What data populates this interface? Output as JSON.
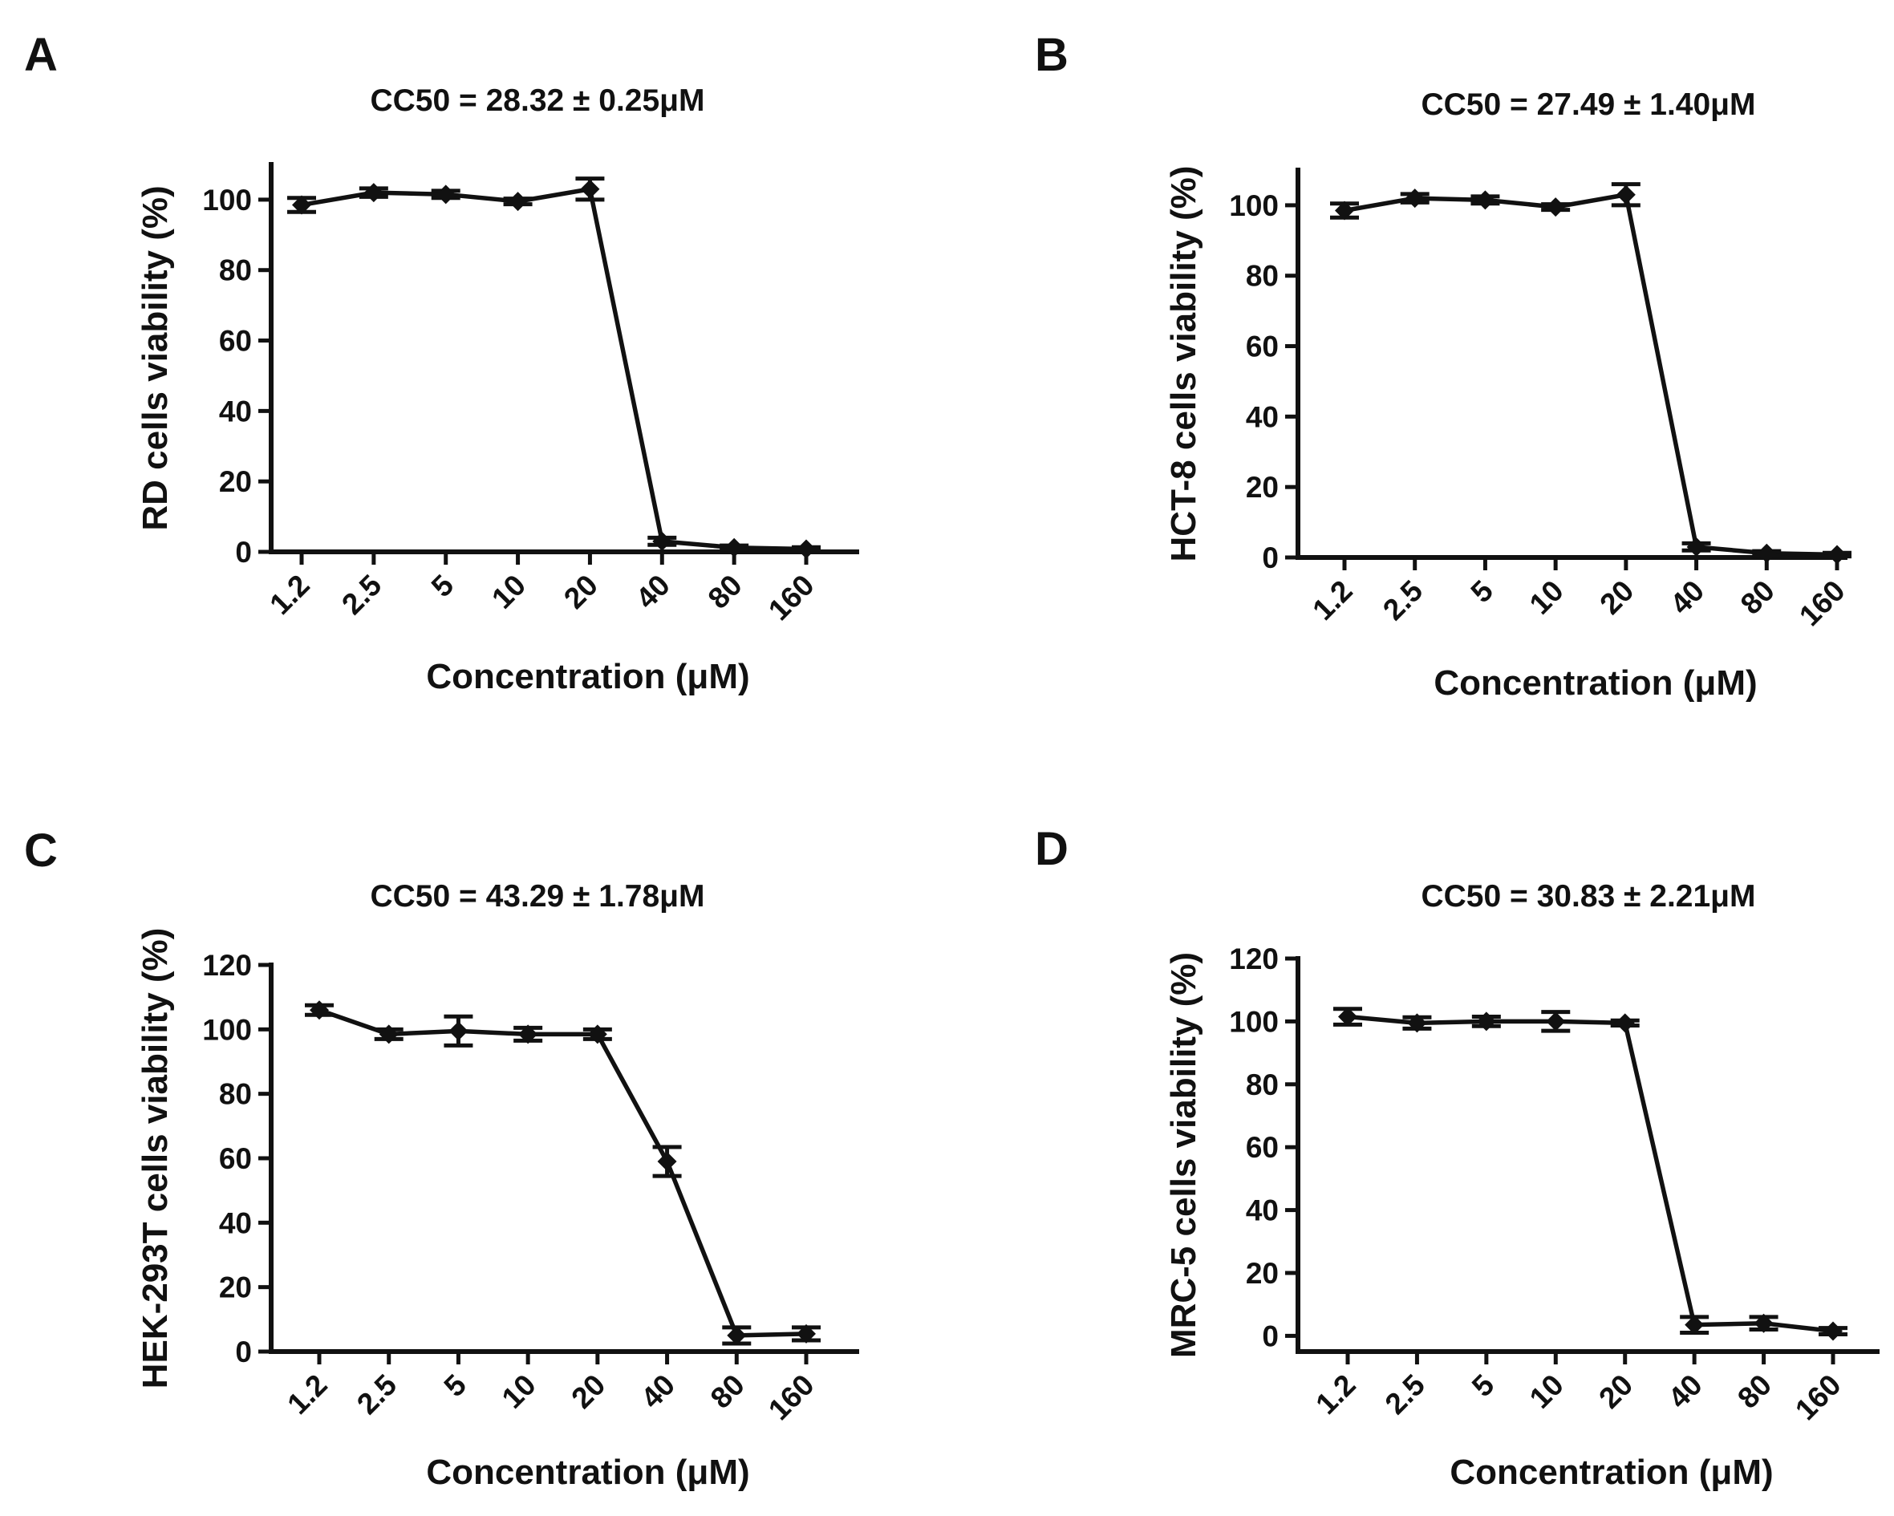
{
  "chart_data": [
    {
      "panel": "A",
      "type": "line",
      "title": "CC50 = 28.32 ± 0.25μM",
      "xlabel": "Concentration (μM)",
      "ylabel": "RD cells viability (%)",
      "categories": [
        "1.2",
        "2.5",
        "5",
        "10",
        "20",
        "40",
        "80",
        "160"
      ],
      "values": [
        98.5,
        102.0,
        101.5,
        99.5,
        103.0,
        3.0,
        1.2,
        0.8
      ],
      "errors": [
        2.0,
        1.2,
        1.0,
        0.8,
        3.0,
        1.0,
        0.6,
        0.5
      ],
      "ylim": [
        0,
        110
      ],
      "yticks": [
        0,
        20,
        40,
        60,
        80,
        100
      ],
      "grid": false
    },
    {
      "panel": "B",
      "type": "line",
      "title": "CC50 = 27.49 ± 1.40μM",
      "xlabel": "Concentration (μM)",
      "ylabel": "HCT-8 cells viability (%)",
      "categories": [
        "1.2",
        "2.5",
        "5",
        "10",
        "20",
        "40",
        "80",
        "160"
      ],
      "values": [
        98.5,
        102.0,
        101.5,
        99.5,
        103.0,
        3.0,
        1.2,
        0.8
      ],
      "errors": [
        2.0,
        1.2,
        1.0,
        0.8,
        3.0,
        1.0,
        0.6,
        0.5
      ],
      "ylim": [
        0,
        110
      ],
      "yticks": [
        0,
        20,
        40,
        60,
        80,
        100
      ],
      "grid": false
    },
    {
      "panel": "C",
      "type": "line",
      "title": "CC50 = 43.29 ± 1.78μM",
      "xlabel": "Concentration (μM)",
      "ylabel": "HEK-293T cells viability (%)",
      "categories": [
        "1.2",
        "2.5",
        "5",
        "10",
        "20",
        "40",
        "80",
        "160"
      ],
      "values": [
        106.0,
        98.5,
        99.5,
        98.5,
        98.5,
        59.0,
        5.0,
        5.5
      ],
      "errors": [
        1.5,
        1.5,
        4.5,
        2.0,
        1.5,
        4.5,
        2.5,
        2.0
      ],
      "ylim": [
        0,
        120
      ],
      "yticks": [
        0,
        20,
        40,
        60,
        80,
        100,
        120
      ],
      "grid": false
    },
    {
      "panel": "D",
      "type": "line",
      "title": "CC50 = 30.83 ± 2.21μM",
      "xlabel": "Concentration (μM)",
      "ylabel": "MRC-5 cells viability (%)",
      "categories": [
        "1.2",
        "2.5",
        "5",
        "10",
        "20",
        "40",
        "80",
        "160"
      ],
      "values": [
        101.5,
        99.5,
        100.0,
        100.0,
        99.5,
        3.5,
        4.0,
        1.5
      ],
      "errors": [
        2.5,
        1.8,
        1.5,
        3.0,
        0.8,
        2.5,
        2.0,
        1.0
      ],
      "ylim": [
        -5,
        120
      ],
      "yticks": [
        0,
        20,
        40,
        60,
        80,
        100,
        120
      ],
      "grid": false
    }
  ]
}
